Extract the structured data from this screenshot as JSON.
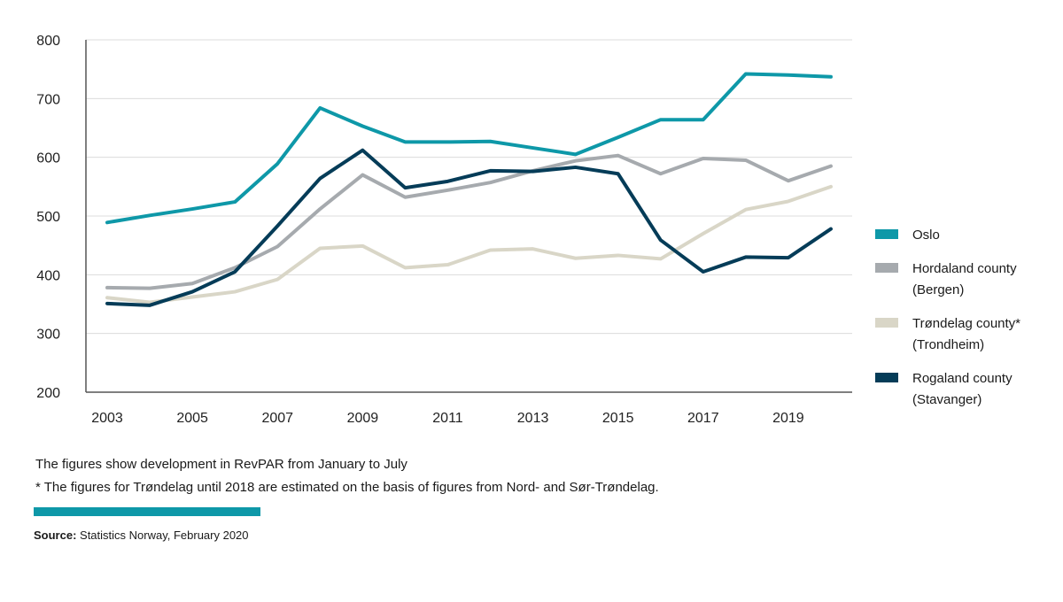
{
  "chart_data": {
    "type": "line",
    "title": "",
    "xlabel": "",
    "ylabel": "",
    "ylim": [
      200,
      800
    ],
    "yticks": [
      200,
      300,
      400,
      500,
      600,
      700,
      800
    ],
    "x": [
      2003,
      2004,
      2005,
      2006,
      2007,
      2008,
      2009,
      2010,
      2011,
      2012,
      2013,
      2014,
      2015,
      2016,
      2017,
      2018,
      2019,
      2020
    ],
    "xtick_labels": [
      "2003",
      "2005",
      "2007",
      "2009",
      "2011",
      "2013",
      "2015",
      "2017",
      "2019"
    ],
    "grid": "horizontal",
    "legend_position": "right",
    "series": [
      {
        "name": "Oslo",
        "color": "#0e98a8",
        "values": [
          489,
          501,
          512,
          524,
          589,
          684,
          653,
          626,
          626,
          627,
          616,
          605,
          634,
          664,
          664,
          742,
          740,
          737
        ]
      },
      {
        "name": "Hordaland county (Bergen)",
        "color": "#a6aaae",
        "values": [
          378,
          377,
          385,
          412,
          448,
          512,
          570,
          532,
          544,
          557,
          577,
          594,
          603,
          572,
          598,
          595,
          560,
          585
        ]
      },
      {
        "name": "Trøndelag county* (Trondheim)",
        "color": "#d9d6c7",
        "values": [
          361,
          353,
          362,
          371,
          392,
          445,
          449,
          412,
          417,
          442,
          444,
          428,
          433,
          427,
          470,
          511,
          525,
          550
        ]
      },
      {
        "name": "Rogaland county (Stavanger)",
        "color": "#053c58",
        "values": [
          351,
          348,
          371,
          405,
          483,
          564,
          612,
          548,
          559,
          577,
          576,
          583,
          572,
          459,
          405,
          430,
          429,
          478
        ]
      }
    ]
  },
  "legend": [
    {
      "line1": "Oslo",
      "line2": "",
      "color": "#0e98a8"
    },
    {
      "line1": "Hordaland county",
      "line2": "(Bergen)",
      "color": "#a6aaae"
    },
    {
      "line1": "Trøndelag county*",
      "line2": "(Trondheim)",
      "color": "#d9d6c7"
    },
    {
      "line1": "Rogaland county",
      "line2": "(Stavanger)",
      "color": "#053c58"
    }
  ],
  "notes": {
    "line1": "The figures show development in RevPAR from January to July",
    "line2": "* The figures for Trøndelag until 2018 are estimated on the basis of figures from Nord- and Sør-Trøndelag."
  },
  "source": {
    "label": "Source:",
    "text": " Statistics Norway, February 2020",
    "bar_color": "#0e98a8"
  }
}
